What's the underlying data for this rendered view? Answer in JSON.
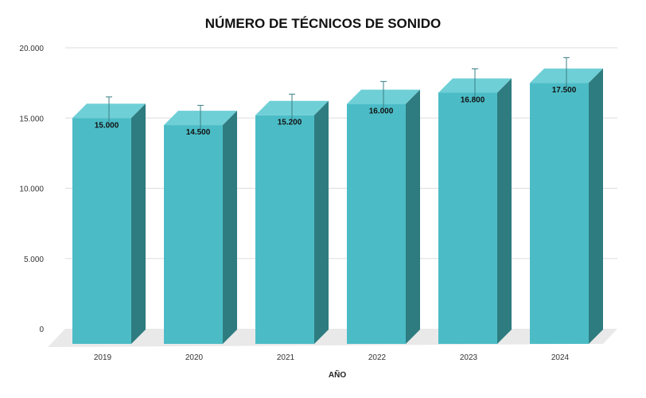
{
  "chart_data": {
    "type": "bar",
    "title": "NÚMERO DE TÉCNICOS DE SONIDO",
    "xlabel": "AÑO",
    "ylabel": "",
    "categories": [
      "2019",
      "2020",
      "2021",
      "2022",
      "2023",
      "2024"
    ],
    "values": [
      15000,
      14500,
      15200,
      16000,
      16800,
      17500
    ],
    "data_labels": [
      "15.000",
      "14.500",
      "15.200",
      "16.000",
      "16.800",
      "17.500"
    ],
    "error_upper": [
      16500,
      15900,
      16700,
      17600,
      18500,
      19300
    ],
    "ylim": [
      0,
      20000
    ],
    "yticks": [
      0,
      5000,
      10000,
      15000,
      20000
    ],
    "ytick_labels": [
      "0",
      "5.000",
      "10.000",
      "15.000",
      "20.000"
    ],
    "grid": true,
    "legend": "none",
    "style": "3d",
    "colors": {
      "front": "#4bbcc6",
      "top": "#6fcfd6",
      "side": "#2e7c80",
      "floor": "#e9e9e9",
      "grid": "#dddddd",
      "errorbar": "#3a7f85"
    }
  }
}
